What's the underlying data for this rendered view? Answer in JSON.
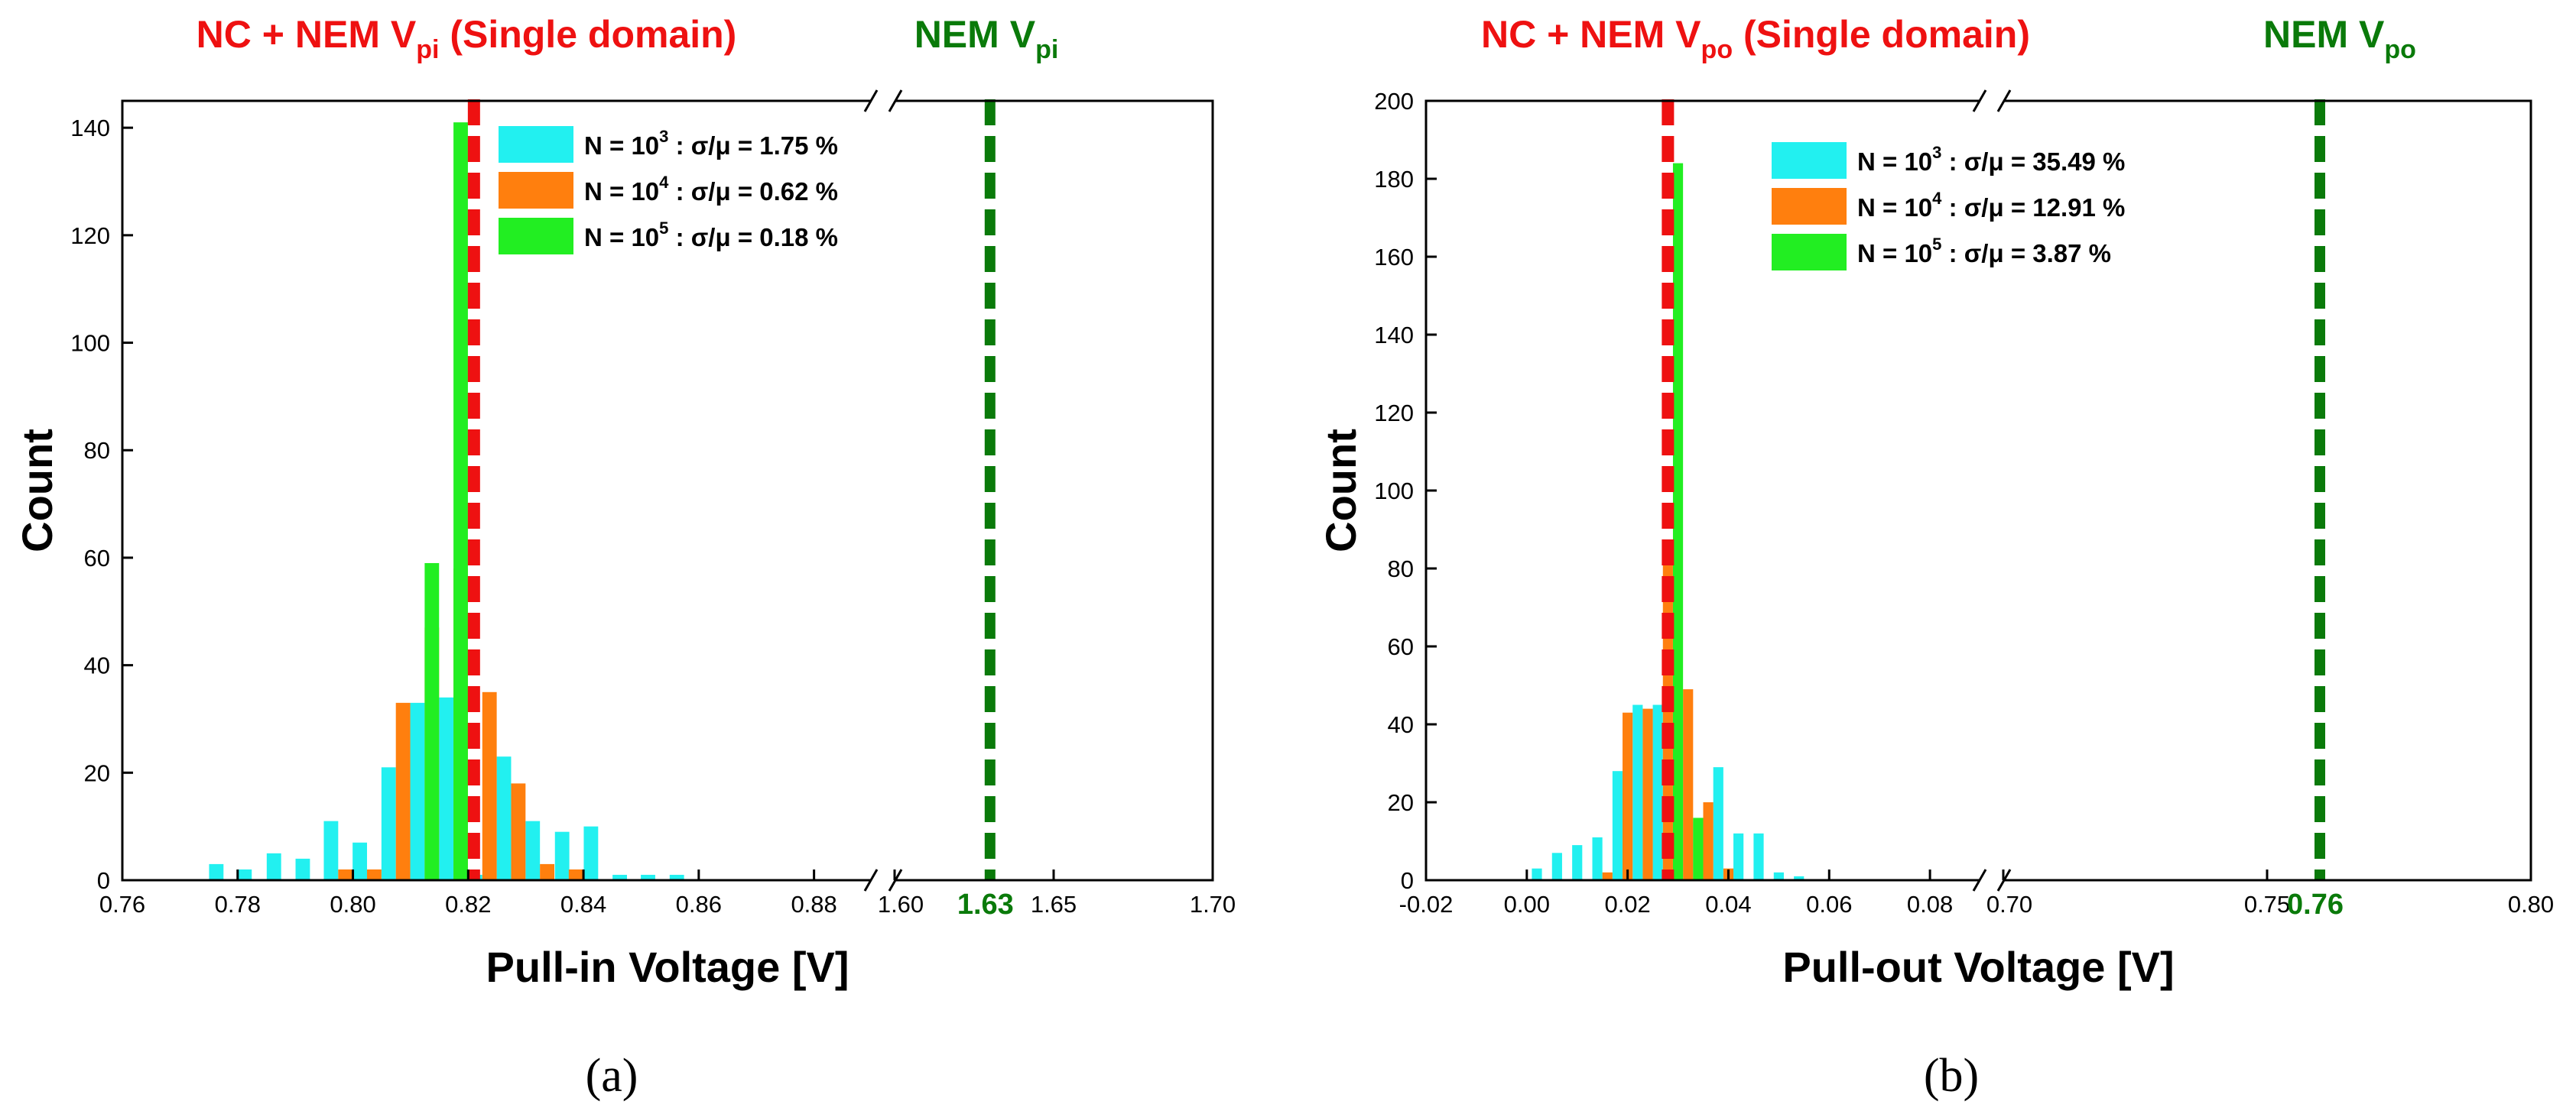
{
  "chart_data": [
    {
      "type": "bar",
      "panel_label": "(a)",
      "xlabel": "Pull-in Voltage [V]",
      "ylabel": "Count",
      "ylim": [
        0,
        145
      ],
      "yticks": [
        "0",
        "20",
        "40",
        "60",
        "80",
        "100",
        "120",
        "140"
      ],
      "xticks_left": [
        "0.76",
        "0.78",
        "0.80",
        "0.82",
        "0.84",
        "0.86",
        "0.88"
      ],
      "xticks_right": [
        "1.60",
        "1.65",
        "1.70"
      ],
      "x_segments": [
        [
          0.76,
          0.89
        ],
        [
          1.6,
          1.7
        ]
      ],
      "bin_width": 0.0025,
      "legend_position": "top-right",
      "series": [
        {
          "name": "N = 10",
          "exponent": "3",
          "stat": ": σ/μ = 1.75 %",
          "color": "#22f0f0",
          "x": [
            0.7763,
            0.7812,
            0.7863,
            0.7913,
            0.7962,
            0.8012,
            0.8062,
            0.8112,
            0.8162,
            0.8212,
            0.8262,
            0.8312,
            0.8363,
            0.8413,
            0.8463,
            0.8512,
            0.8562
          ],
          "values": [
            3,
            2,
            5,
            4,
            11,
            7,
            21,
            33,
            34,
            1,
            23,
            11,
            9,
            10,
            1,
            1,
            1
          ]
        },
        {
          "name": "N = 10",
          "exponent": "4",
          "stat": ": σ/μ = 0.62 %",
          "color": "#ff7f0e",
          "x": [
            0.7987,
            0.8037,
            0.8087,
            0.8137,
            0.8187,
            0.8237,
            0.8287,
            0.8337,
            0.8387
          ],
          "values": [
            2,
            2,
            33,
            47,
            58,
            35,
            18,
            3,
            2
          ]
        },
        {
          "name": "N = 10",
          "exponent": "5",
          "stat": ": σ/μ = 0.18 %",
          "color": "#22ee22",
          "x": [
            0.8137,
            0.8187
          ],
          "values": [
            59,
            141
          ]
        }
      ],
      "reference_lines": [
        {
          "label": "NC + NEM V",
          "subscript": "pi",
          "suffix": " (Single domain)",
          "x": 0.821,
          "color": "#ee1111"
        },
        {
          "label": "NEM V",
          "subscript": "pi",
          "suffix": "",
          "x": 1.63,
          "tick_label": "1.63",
          "color": "#0a7a0a"
        }
      ]
    },
    {
      "type": "bar",
      "panel_label": "(b)",
      "xlabel": "Pull-out Voltage [V]",
      "ylabel": "Count",
      "ylim": [
        0,
        200
      ],
      "yticks": [
        "0",
        "20",
        "40",
        "60",
        "80",
        "100",
        "120",
        "140",
        "160",
        "180",
        "200"
      ],
      "xticks_left": [
        "-0.02",
        "0.00",
        "0.02",
        "0.04",
        "0.06",
        "0.08"
      ],
      "xticks_right": [
        "0.70",
        "0.75",
        "0.80"
      ],
      "x_segments": [
        [
          -0.02,
          0.09
        ],
        [
          0.7,
          0.8
        ]
      ],
      "bin_width": 0.002,
      "legend_position": "top-center",
      "series": [
        {
          "name": "N = 10",
          "exponent": "3",
          "stat": ": σ/μ = 35.49 %",
          "color": "#22f0f0",
          "x": [
            0.002,
            0.006,
            0.01,
            0.014,
            0.018,
            0.022,
            0.026,
            0.03,
            0.034,
            0.038,
            0.042,
            0.046,
            0.05,
            0.054
          ],
          "values": [
            3,
            7,
            9,
            11,
            28,
            45,
            45,
            41,
            15,
            29,
            12,
            12,
            2,
            1
          ]
        },
        {
          "name": "N = 10",
          "exponent": "4",
          "stat": ": σ/μ = 12.91 %",
          "color": "#ff7f0e",
          "x": [
            0.016,
            0.02,
            0.024,
            0.028,
            0.032,
            0.036,
            0.04
          ],
          "values": [
            2,
            43,
            44,
            81,
            49,
            20,
            3
          ]
        },
        {
          "name": "N = 10",
          "exponent": "5",
          "stat": ": σ/μ = 3.87 %",
          "color": "#22ee22",
          "x": [
            0.03,
            0.034
          ],
          "values": [
            184,
            16
          ]
        }
      ],
      "reference_lines": [
        {
          "label": "NC + NEM V",
          "subscript": "po",
          "suffix": " (Single domain)",
          "x": 0.028,
          "color": "#ee1111"
        },
        {
          "label": "NEM V",
          "subscript": "po",
          "suffix": "",
          "x": 0.76,
          "tick_label": "0.76",
          "color": "#0a7a0a"
        }
      ]
    }
  ]
}
